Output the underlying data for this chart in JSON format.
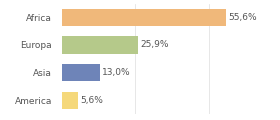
{
  "categories": [
    "America",
    "Asia",
    "Europa",
    "Africa"
  ],
  "values": [
    5.6,
    13.0,
    25.9,
    55.6
  ],
  "labels": [
    "5,6%",
    "13,0%",
    "25,9%",
    "55,6%"
  ],
  "bar_colors": [
    "#f5d87a",
    "#6e84b8",
    "#b5c98a",
    "#f0b87a"
  ],
  "background_color": "#ffffff",
  "xlim": [
    0,
    72
  ],
  "label_fontsize": 6.5,
  "tick_fontsize": 6.5,
  "grid_color": "#dddddd",
  "grid_values": [
    25,
    50
  ]
}
